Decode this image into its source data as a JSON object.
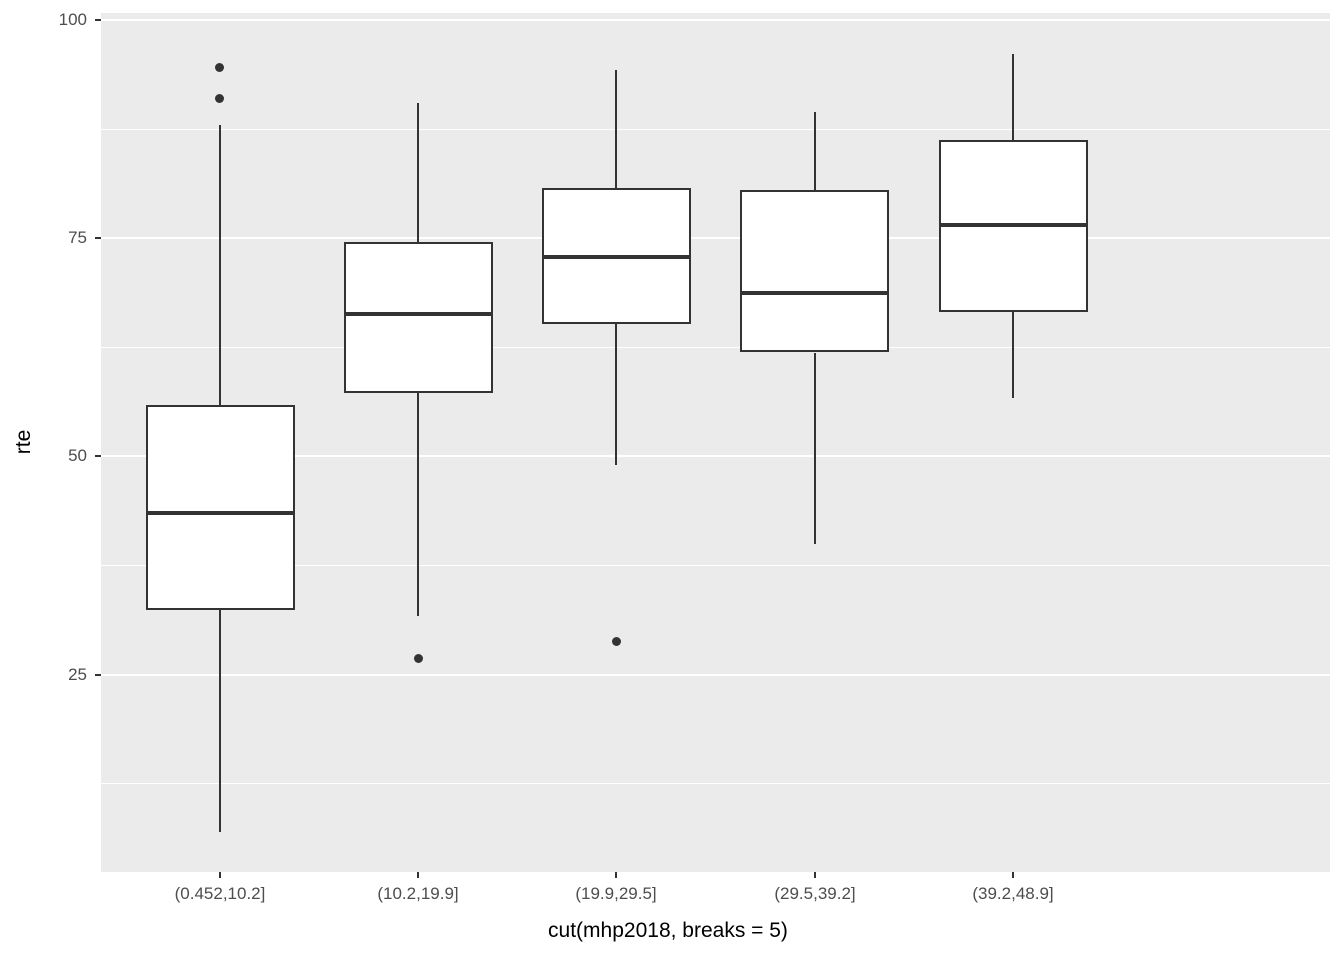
{
  "chart_data": {
    "type": "boxplot",
    "title": "",
    "xlabel": "cut(mhp2018, breaks = 5)",
    "ylabel": "rte",
    "categories": [
      "(0.452,10.2]",
      "(10.2,19.9]",
      "(19.9,29.5]",
      "(29.5,39.2]",
      "(39.2,48.9]"
    ],
    "y_ticks": [
      100,
      75,
      50,
      25
    ],
    "y_minor_gridlines": [
      87.5,
      62.5,
      37.5,
      12.5
    ],
    "ylim": [
      2.4,
      100.8
    ],
    "grid": true,
    "legend": "none",
    "boxes": [
      {
        "category": "(0.452,10.2]",
        "whisker_low": 7.0,
        "q1": 32.4,
        "median": 43.5,
        "q3": 55.9,
        "whisker_high": 88.0,
        "outliers": [
          91.0,
          94.5
        ]
      },
      {
        "category": "(10.2,19.9]",
        "whisker_low": 31.8,
        "q1": 57.3,
        "median": 66.3,
        "q3": 74.6,
        "whisker_high": 90.5,
        "outliers": [
          26.8
        ]
      },
      {
        "category": "(19.9,29.5]",
        "whisker_low": 49.0,
        "q1": 65.2,
        "median": 72.9,
        "q3": 80.8,
        "whisker_high": 94.3,
        "outliers": [
          28.8
        ]
      },
      {
        "category": "(29.5,39.2]",
        "whisker_low": 40.0,
        "q1": 61.9,
        "median": 68.7,
        "q3": 80.5,
        "whisker_high": 89.5,
        "outliers": []
      },
      {
        "category": "(39.2,48.9]",
        "whisker_low": 56.7,
        "q1": 66.6,
        "median": 76.5,
        "q3": 86.3,
        "whisker_high": 96.1,
        "outliers": []
      }
    ],
    "colors": {
      "panel_bg": "#EBEBEB",
      "grid": "#FFFFFF",
      "box_stroke": "#333333",
      "box_fill": "#FFFFFF",
      "outlier": "#333333",
      "tick_mark": "#333333",
      "axis_text": "#4D4D4D",
      "title_text": "#000000",
      "figure_bg": "#FFFFFF"
    }
  }
}
